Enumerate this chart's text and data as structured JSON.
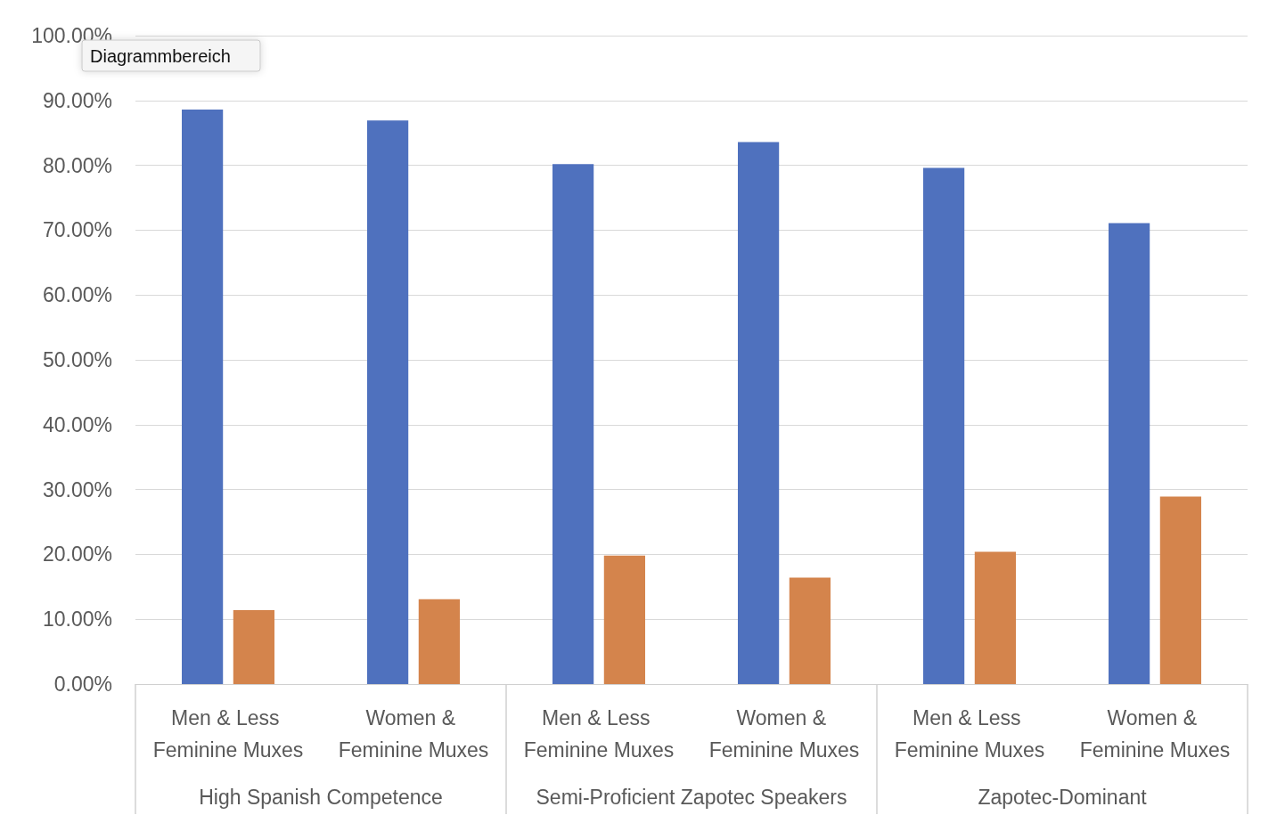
{
  "chart_data": {
    "type": "bar",
    "categories": [
      "Men & Less Feminine Muxes",
      "Women & Feminine Muxes",
      "Men & Less Feminine Muxes",
      "Women & Feminine Muxes",
      "Men & Less Feminine Muxes",
      "Women & Feminine Muxes"
    ],
    "series": [
      {
        "color": "#4f71be",
        "values": [
          88.6,
          86.9,
          80.2,
          83.6,
          79.6,
          71.1
        ]
      },
      {
        "color": "#d4844c",
        "values": [
          11.4,
          13.1,
          19.8,
          16.4,
          20.4,
          28.9
        ]
      }
    ],
    "ylim": [
      0,
      100
    ],
    "yticks": [
      {
        "value": 0,
        "label": "0.00%"
      },
      {
        "value": 10,
        "label": "10.00%"
      },
      {
        "value": 20,
        "label": "20.00%"
      },
      {
        "value": 30,
        "label": "30.00%"
      },
      {
        "value": 40,
        "label": "40.00%"
      },
      {
        "value": 50,
        "label": "50.00%"
      },
      {
        "value": 60,
        "label": "60.00%"
      },
      {
        "value": 70,
        "label": "70.00%"
      },
      {
        "value": 80,
        "label": "80.00%"
      },
      {
        "value": 90,
        "label": "90.00%"
      },
      {
        "value": 100,
        "label": "100.00%"
      }
    ],
    "grid": "y",
    "annotations": [
      "High Spanish Competence",
      "Semi-Proficient Zapotec Speakers",
      "Zapotec-Dominant",
      "Diagrammbereich"
    ]
  }
}
